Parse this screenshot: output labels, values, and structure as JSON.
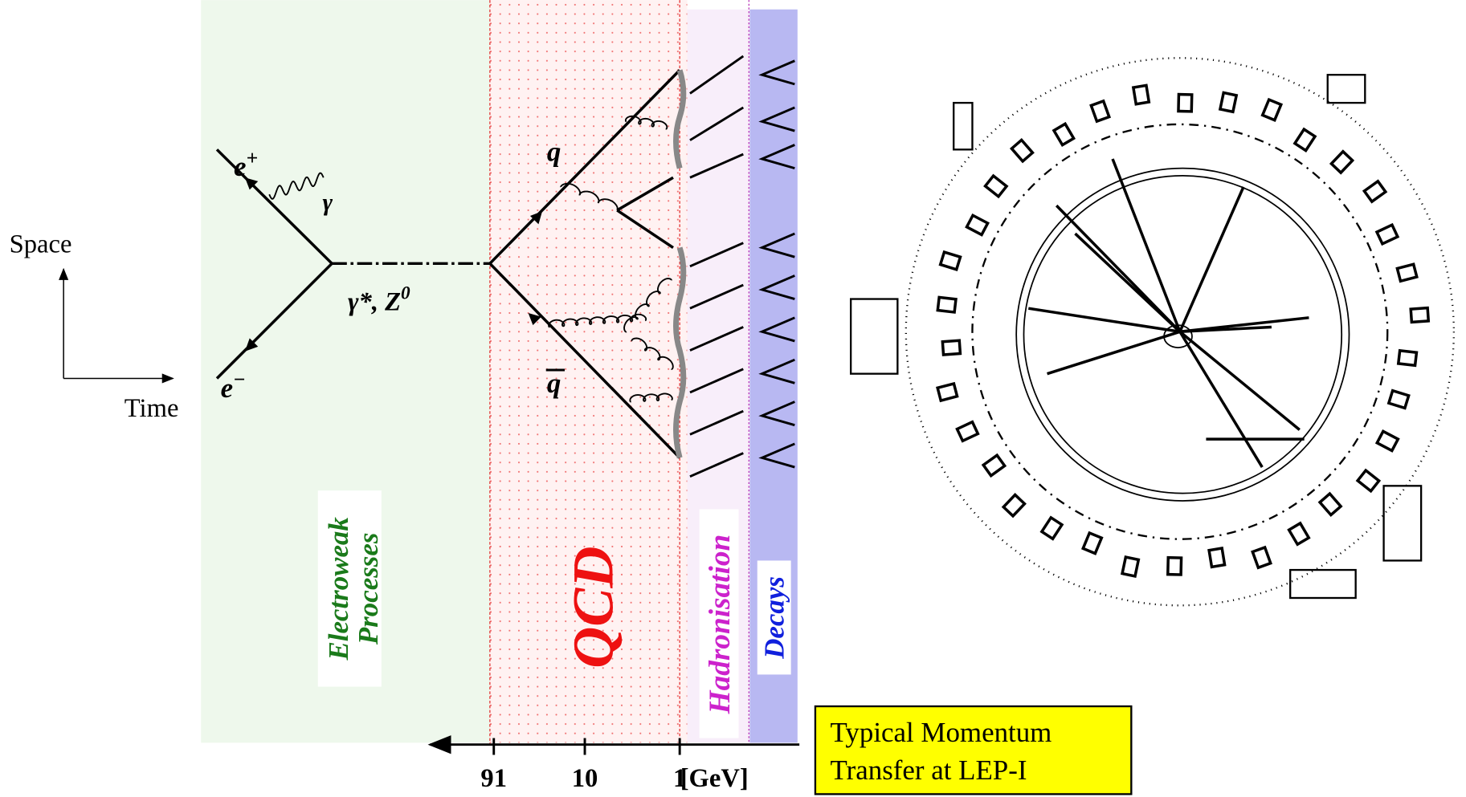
{
  "axes_labels": {
    "space": "Space",
    "time": "Time"
  },
  "feynman": {
    "e_plus": {
      "base": "e",
      "sup": "+"
    },
    "e_minus": {
      "base": "e",
      "sup": "−"
    },
    "photon": "γ",
    "propagator": {
      "gamma": "γ",
      "rest": "*, Z",
      "sup": "0"
    },
    "quark": "q",
    "antiquark": "q"
  },
  "regions": {
    "electroweak": [
      "Electroweak",
      "Processes"
    ],
    "qcd": "QCD",
    "hadronisation": "Hadronisation",
    "decays": "Decays"
  },
  "scale": {
    "ticks": [
      91,
      10,
      1
    ],
    "unit": "[GeV]",
    "log": true
  },
  "note": [
    "Typical Momentum",
    "Transfer at LEP-I"
  ]
}
